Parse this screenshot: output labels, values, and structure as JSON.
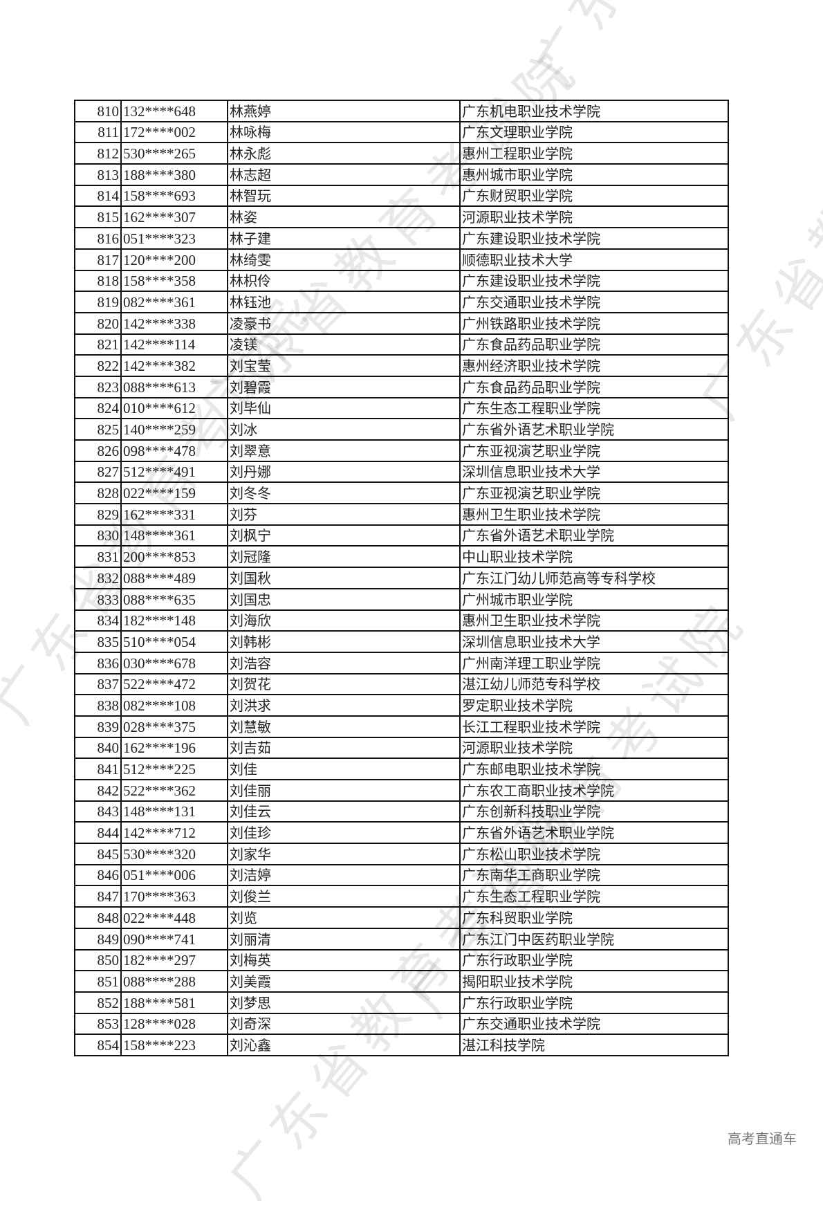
{
  "watermark": "广东省教育考试院",
  "footer": "高考直通车",
  "rows": [
    [
      "810",
      "132****648",
      "林燕婷",
      "广东机电职业技术学院"
    ],
    [
      "811",
      "172****002",
      "林咏梅",
      "广东文理职业学院"
    ],
    [
      "812",
      "530****265",
      "林永彪",
      "惠州工程职业学院"
    ],
    [
      "813",
      "188****380",
      "林志超",
      "惠州城市职业学院"
    ],
    [
      "814",
      "158****693",
      "林智玩",
      "广东财贸职业学院"
    ],
    [
      "815",
      "162****307",
      "林姿",
      "河源职业技术学院"
    ],
    [
      "816",
      "051****323",
      "林子建",
      "广东建设职业技术学院"
    ],
    [
      "817",
      "120****200",
      "林绮雯",
      "顺德职业技术大学"
    ],
    [
      "818",
      "158****358",
      "林枳伶",
      "广东建设职业技术学院"
    ],
    [
      "819",
      "082****361",
      "林钰池",
      "广东交通职业技术学院"
    ],
    [
      "820",
      "142****338",
      "凌豪书",
      "广州铁路职业技术学院"
    ],
    [
      "821",
      "142****114",
      "凌镁",
      "广东食品药品职业学院"
    ],
    [
      "822",
      "142****382",
      "刘宝莹",
      "惠州经济职业技术学院"
    ],
    [
      "823",
      "088****613",
      "刘碧霞",
      "广东食品药品职业学院"
    ],
    [
      "824",
      "010****612",
      "刘毕仙",
      "广东生态工程职业学院"
    ],
    [
      "825",
      "140****259",
      "刘冰",
      "广东省外语艺术职业学院"
    ],
    [
      "826",
      "098****478",
      "刘翠意",
      "广东亚视演艺职业学院"
    ],
    [
      "827",
      "512****491",
      "刘丹娜",
      "深圳信息职业技术大学"
    ],
    [
      "828",
      "022****159",
      "刘冬冬",
      "广东亚视演艺职业学院"
    ],
    [
      "829",
      "162****331",
      "刘芬",
      "惠州卫生职业技术学院"
    ],
    [
      "830",
      "148****361",
      "刘枫宁",
      "广东省外语艺术职业学院"
    ],
    [
      "831",
      "200****853",
      "刘冠隆",
      "中山职业技术学院"
    ],
    [
      "832",
      "088****489",
      "刘国秋",
      "广东江门幼儿师范高等专科学校"
    ],
    [
      "833",
      "088****635",
      "刘国忠",
      "广州城市职业学院"
    ],
    [
      "834",
      "182****148",
      "刘海欣",
      "惠州卫生职业技术学院"
    ],
    [
      "835",
      "510****054",
      "刘韩彬",
      "深圳信息职业技术大学"
    ],
    [
      "836",
      "030****678",
      "刘浩容",
      "广州南洋理工职业学院"
    ],
    [
      "837",
      "522****472",
      "刘贺花",
      "湛江幼儿师范专科学校"
    ],
    [
      "838",
      "082****108",
      "刘洪求",
      "罗定职业技术学院"
    ],
    [
      "839",
      "028****375",
      "刘慧敏",
      "长江工程职业技术学院"
    ],
    [
      "840",
      "162****196",
      "刘吉茹",
      "河源职业技术学院"
    ],
    [
      "841",
      "512****225",
      "刘佳",
      "广东邮电职业技术学院"
    ],
    [
      "842",
      "522****362",
      "刘佳丽",
      "广东农工商职业技术学院"
    ],
    [
      "843",
      "148****131",
      "刘佳云",
      "广东创新科技职业学院"
    ],
    [
      "844",
      "142****712",
      "刘佳珍",
      "广东省外语艺术职业学院"
    ],
    [
      "845",
      "530****320",
      "刘家华",
      "广东松山职业技术学院"
    ],
    [
      "846",
      "051****006",
      "刘洁婷",
      "广东南华工商职业学院"
    ],
    [
      "847",
      "170****363",
      "刘俊兰",
      "广东生态工程职业学院"
    ],
    [
      "848",
      "022****448",
      "刘览",
      "广东科贸职业学院"
    ],
    [
      "849",
      "090****741",
      "刘丽清",
      "广东江门中医药职业学院"
    ],
    [
      "850",
      "182****297",
      "刘梅英",
      "广东行政职业学院"
    ],
    [
      "851",
      "088****288",
      "刘美霞",
      "揭阳职业技术学院"
    ],
    [
      "852",
      "188****581",
      "刘梦思",
      "广东行政职业学院"
    ],
    [
      "853",
      "128****028",
      "刘奇深",
      "广东交通职业技术学院"
    ],
    [
      "854",
      "158****223",
      "刘沁鑫",
      "湛江科技学院"
    ]
  ]
}
